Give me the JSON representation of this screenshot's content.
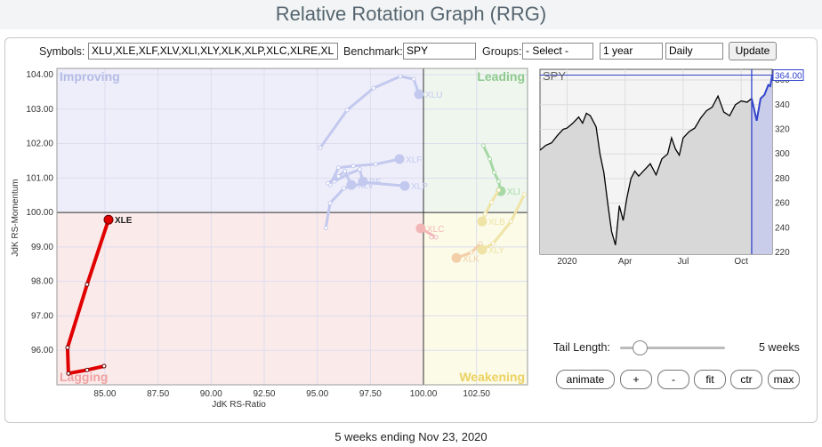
{
  "header": {
    "title": "Relative Rotation Graph (RRG)"
  },
  "controls": {
    "symbols_label": "Symbols:",
    "symbols": "XLU,XLE,XLF,XLV,XLI,XLY,XLK,XLP,XLC,XLRE,XL",
    "benchmark_label": "Benchmark:",
    "benchmark": "SPY",
    "groups_label": "Groups:",
    "groups": "- Select -",
    "period": "1 year",
    "frequency": "Daily",
    "update": "Update",
    "tail_label": "Tail Length:",
    "tail_value": "5 weeks",
    "buttons": [
      "animate",
      "+",
      "-",
      "fit",
      "ctr",
      "max"
    ]
  },
  "footer": "5 weeks ending Nov 23, 2020",
  "chart_data": [
    {
      "type": "rrg",
      "x_label": "JdK RS-Ratio",
      "y_label": "JdK RS-Momentum",
      "quadrants": [
        {
          "label": "Improving",
          "color": "#b4bbe6",
          "bg": "#eeeefa"
        },
        {
          "label": "Leading",
          "color": "#8ec98e",
          "bg": "#eef6ee"
        },
        {
          "label": "Lagging",
          "color": "#f0a0a0",
          "bg": "#fbeaea"
        },
        {
          "label": "Weakening",
          "color": "#ecd160",
          "bg": "#fbfbe8"
        }
      ],
      "quadrant_center": [
        100,
        100
      ],
      "xlim": [
        82.74,
        104.9
      ],
      "ylim": [
        95.0,
        104.18
      ],
      "xticks": [
        {
          "value": 85,
          "label": "85.00"
        },
        {
          "value": 87.5,
          "label": "87.50"
        },
        {
          "value": 90,
          "label": "90.00"
        },
        {
          "value": 92.5,
          "label": "92.50"
        },
        {
          "value": 95,
          "label": "95.00"
        },
        {
          "value": 97.5,
          "label": "97.50"
        },
        {
          "value": 100,
          "label": "100.00"
        },
        {
          "value": 102.5,
          "label": "102.50"
        }
      ],
      "yticks": [
        {
          "value": 96,
          "label": "96.00"
        },
        {
          "value": 97,
          "label": "97.00"
        },
        {
          "value": 98,
          "label": "98.00"
        },
        {
          "value": 99,
          "label": "99.00"
        },
        {
          "value": 100,
          "label": "100.00"
        },
        {
          "value": 101,
          "label": "101.00"
        },
        {
          "value": 102,
          "label": "102.00"
        },
        {
          "value": 103,
          "label": "103.00"
        },
        {
          "value": 104,
          "label": "104.00"
        }
      ],
      "series": [
        {
          "name": "XLU",
          "color": "#c3c9ee",
          "x": [
            95.14,
            96.4,
            97.65,
            98.91,
            99.54,
            99.79
          ],
          "values": [
            101.88,
            102.97,
            103.61,
            103.95,
            103.87,
            103.43
          ]
        },
        {
          "name": "XLF",
          "color": "#c3c9ee",
          "x": [
            95.6,
            96.0,
            96.7,
            97.75,
            98.87
          ],
          "values": [
            100.8,
            101.3,
            101.35,
            101.4,
            101.55
          ]
        },
        {
          "name": "XLP",
          "color": "#c3c9ee",
          "x": [
            95.4,
            95.6,
            96.25,
            97.3,
            99.12
          ],
          "values": [
            99.55,
            100.27,
            100.7,
            100.87,
            100.77
          ]
        },
        {
          "name": "RE",
          "color": "#c3c9ee",
          "x": [
            95.8,
            96.4,
            97.0,
            97.15
          ],
          "values": [
            100.9,
            101.1,
            101.25,
            100.9
          ]
        },
        {
          "name": "XLV",
          "color": "#c3c9ee",
          "x": [
            95.5,
            96.0,
            96.3,
            96.6
          ],
          "values": [
            100.85,
            101.05,
            101.2,
            100.8
          ]
        },
        {
          "name": "XLI",
          "color": "#a6d8a6",
          "x": [
            102.82,
            103.12,
            103.33,
            103.54,
            103.64
          ],
          "values": [
            101.94,
            101.55,
            101.16,
            100.9,
            100.62
          ]
        },
        {
          "name": "XLB",
          "color": "#f0e3a6",
          "x": [
            103.54,
            103.2,
            102.9,
            102.76
          ],
          "values": [
            100.65,
            100.3,
            99.95,
            99.74
          ]
        },
        {
          "name": "XLY",
          "color": "#f0e3a6",
          "x": [
            104.75,
            104.12,
            103.28,
            102.76
          ],
          "values": [
            100.52,
            99.74,
            99.1,
            98.92
          ]
        },
        {
          "name": "XLK",
          "color": "#f2cfa8",
          "x": [
            102.68,
            102.26,
            101.55
          ],
          "values": [
            99.1,
            98.84,
            98.68
          ]
        },
        {
          "name": "XLC",
          "color": "#f2b6b6",
          "x": [
            100.38,
            100.59,
            99.87
          ],
          "values": [
            99.28,
            99.28,
            99.54
          ]
        },
        {
          "name": "XLE",
          "color": "#e00000",
          "x": [
            84.96,
            84.16,
            83.28,
            83.24,
            84.16,
            85.17
          ],
          "values": [
            95.54,
            95.43,
            95.33,
            96.08,
            97.91,
            99.79
          ]
        }
      ]
    },
    {
      "type": "line",
      "title": "SPY",
      "color": "#000000",
      "highlight_color": "#3344cc",
      "highlight_x": 9.54,
      "last_label": {
        "value": 364,
        "label": "364.00"
      },
      "xlim": [
        -1.4,
        10.6
      ],
      "ylim": [
        218.6,
        368.7
      ],
      "xticks": [
        {
          "value": 0,
          "label": "2020"
        },
        {
          "value": 3,
          "label": "Apr"
        },
        {
          "value": 6,
          "label": "Jul"
        },
        {
          "value": 9,
          "label": "Oct"
        }
      ],
      "yticks": [
        220,
        240,
        260,
        280,
        300,
        320,
        340,
        360
      ],
      "x": [
        -1.4,
        -1.1,
        -0.8,
        -0.5,
        -0.2,
        0,
        0.3,
        0.6,
        0.8,
        1.0,
        1.2,
        1.5,
        1.7,
        1.9,
        2.1,
        2.3,
        2.5,
        2.7,
        2.9,
        3.1,
        3.3,
        3.5,
        3.7,
        4.0,
        4.3,
        4.6,
        4.9,
        5.2,
        5.4,
        5.6,
        5.8,
        6.0,
        6.3,
        6.6,
        6.9,
        7.2,
        7.5,
        7.8,
        8.1,
        8.4,
        8.7,
        9.0,
        9.3,
        9.54,
        9.8,
        10.0,
        10.2,
        10.4,
        10.5,
        10.6
      ],
      "values": [
        303,
        307,
        309,
        315,
        320,
        321,
        325,
        330,
        325,
        333,
        331,
        322,
        300,
        285,
        260,
        237,
        226,
        258,
        246,
        265,
        280,
        286,
        282,
        287,
        292,
        283,
        296,
        300,
        313,
        304,
        299,
        313,
        318,
        321,
        329,
        335,
        338,
        347,
        334,
        331,
        340,
        343,
        342,
        345,
        327,
        345,
        348,
        356,
        355,
        364
      ]
    }
  ]
}
